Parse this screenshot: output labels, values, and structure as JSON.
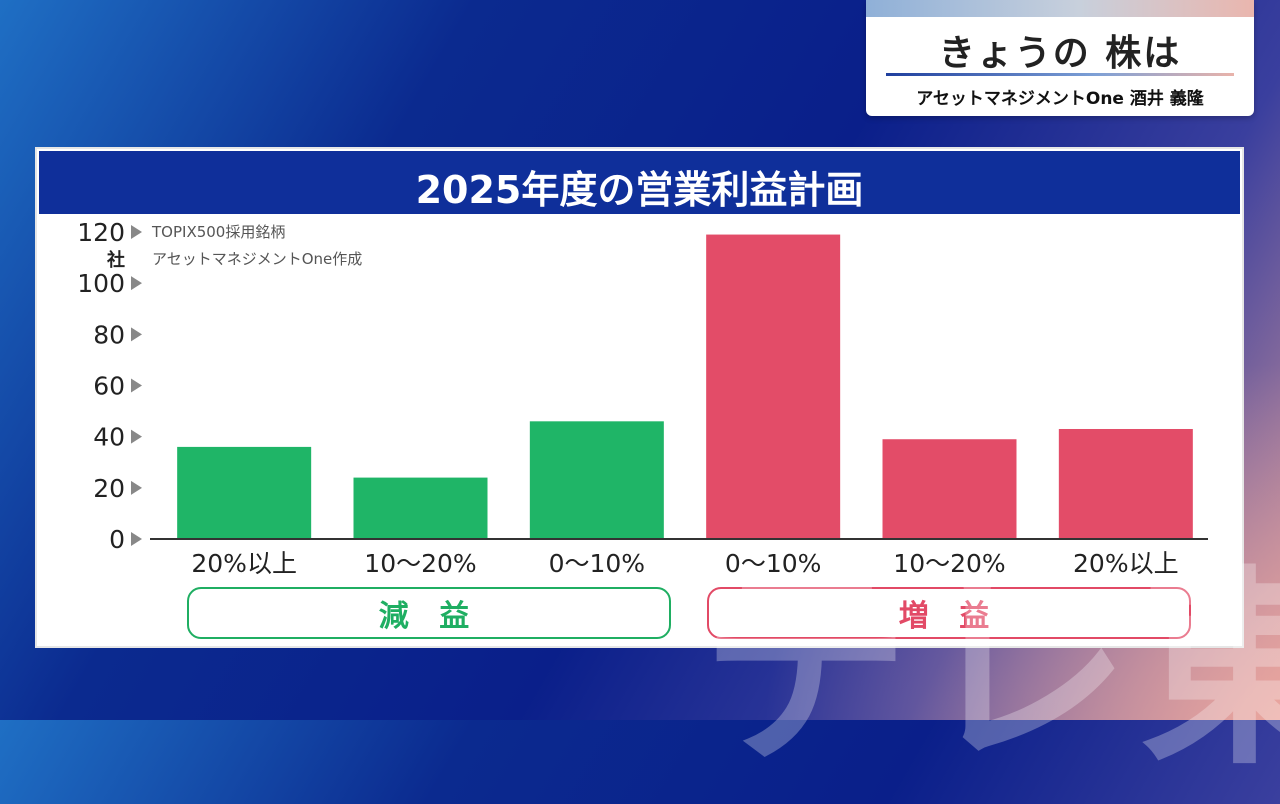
{
  "program": {
    "title": "きょうの 株は",
    "guest": "アセットマネジメントOne 酒井 義隆"
  },
  "chart_data": {
    "type": "bar",
    "title": "2025年度の営業利益計画",
    "note_line1": "TOPIX500採用銘柄",
    "note_line2": "アセットマネジメントOne作成",
    "yunit": "社",
    "ylim": [
      0,
      120
    ],
    "yticks": [
      "0",
      "20",
      "40",
      "60",
      "80",
      "100",
      "120"
    ],
    "categories": [
      "20%以上",
      "10〜20%",
      "0〜10%",
      "0〜10%",
      "10〜20%",
      "20%以上"
    ],
    "values": [
      36,
      24,
      46,
      119,
      39,
      43
    ],
    "groups": [
      {
        "label": "減 益",
        "color": "#1fb567",
        "categories": [
          0,
          1,
          2
        ]
      },
      {
        "label": "増 益",
        "color": "#e34c68",
        "categories": [
          3,
          4,
          5
        ]
      }
    ]
  },
  "watermark": "テレ東"
}
